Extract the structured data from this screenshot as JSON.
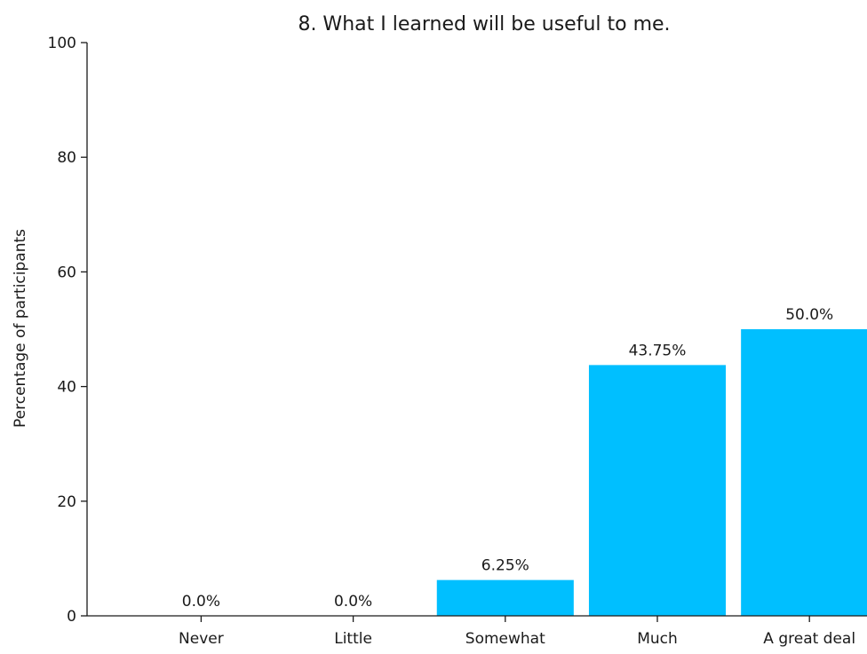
{
  "chart_data": {
    "type": "bar",
    "title": "8. What I learned will be useful to me.",
    "xlabel": "",
    "ylabel": "Percentage of participants",
    "categories": [
      "Never",
      "Little",
      "Somewhat",
      "Much",
      "A great deal"
    ],
    "values": [
      0.0,
      0.0,
      6.25,
      43.75,
      50.0
    ],
    "value_labels": [
      "0.0%",
      "0.0%",
      "6.25%",
      "43.75%",
      "50.0%"
    ],
    "ylim": [
      0,
      100
    ],
    "yticks": [
      "0",
      "20",
      "40",
      "60",
      "80",
      "100"
    ],
    "ytick_values": [
      0,
      20,
      40,
      60,
      80,
      100
    ],
    "bar_color": "#00bfff",
    "grid": false,
    "legend": false
  }
}
